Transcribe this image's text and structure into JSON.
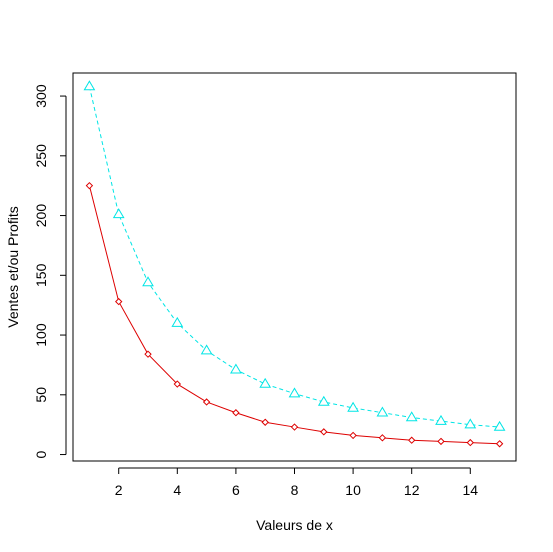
{
  "chart_data": {
    "type": "line",
    "title": "",
    "xlabel": "Valeurs de x",
    "ylabel": "Ventes et/ou Profits",
    "xlim": [
      0.44,
      15.56
    ],
    "ylim": [
      -5.4,
      319.3
    ],
    "x_ticks": [
      2,
      4,
      6,
      8,
      10,
      12,
      14
    ],
    "y_ticks": [
      0,
      50,
      100,
      150,
      200,
      250,
      300
    ],
    "x_tick_labels": [
      "2",
      "4",
      "6",
      "8",
      "10",
      "12",
      "14"
    ],
    "y_tick_labels": [
      "0",
      "50",
      "100",
      "150",
      "200",
      "250",
      "300"
    ],
    "grid": false,
    "legend": "none",
    "x": [
      1,
      2,
      3,
      4,
      5,
      6,
      7,
      8,
      9,
      10,
      11,
      12,
      13,
      14,
      15
    ],
    "series": [
      {
        "color": "#00e5e5",
        "line_style": "dashed",
        "marker": "triangle",
        "values": [
          308,
          201,
          144,
          110,
          87,
          71,
          59,
          51,
          44,
          39,
          35,
          31,
          28,
          25,
          23
        ]
      },
      {
        "color": "#dd0000",
        "line_style": "solid",
        "marker": "diamond",
        "values": [
          225,
          128,
          84,
          59,
          44,
          35,
          27,
          23,
          19,
          16,
          14,
          12,
          11,
          10,
          9
        ]
      }
    ]
  }
}
